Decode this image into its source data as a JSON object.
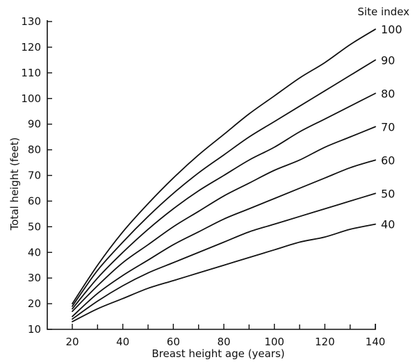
{
  "chart_data": {
    "type": "line",
    "title": "",
    "xlabel": "Breast height age (years)",
    "ylabel": "Total height (feet)",
    "xlim": [
      20,
      140
    ],
    "ylim": [
      10,
      130
    ],
    "x_ticks": [
      20,
      40,
      60,
      80,
      100,
      120,
      140
    ],
    "x_minor_ticks": [
      30,
      50,
      70,
      90,
      110,
      130
    ],
    "y_ticks": [
      10,
      20,
      30,
      40,
      50,
      60,
      70,
      80,
      90,
      100,
      110,
      120,
      130
    ],
    "grid": false,
    "legend_title": "Site index",
    "legend_placement": "right, at curve ends",
    "series": [
      {
        "name": "100",
        "x": [
          20,
          30,
          40,
          50,
          60,
          70,
          80,
          90,
          100,
          110,
          120,
          130,
          140
        ],
        "values": [
          20,
          35,
          48,
          59,
          69,
          78,
          86,
          94,
          101,
          108,
          114,
          121,
          127
        ]
      },
      {
        "name": "90",
        "x": [
          20,
          30,
          40,
          50,
          60,
          70,
          80,
          90,
          100,
          110,
          120,
          130,
          140
        ],
        "values": [
          19,
          33,
          44,
          54,
          63,
          71,
          78,
          85,
          91,
          97,
          103,
          109,
          115
        ]
      },
      {
        "name": "80",
        "x": [
          20,
          30,
          40,
          50,
          60,
          70,
          80,
          90,
          100,
          110,
          120,
          130,
          140
        ],
        "values": [
          18,
          30,
          40,
          49,
          57,
          64,
          70,
          76,
          81,
          87,
          92,
          97,
          102
        ]
      },
      {
        "name": "70",
        "x": [
          20,
          30,
          40,
          50,
          60,
          70,
          80,
          90,
          100,
          110,
          120,
          130,
          140
        ],
        "values": [
          17,
          27,
          36,
          43,
          50,
          56,
          62,
          67,
          72,
          76,
          81,
          85,
          89
        ]
      },
      {
        "name": "60",
        "x": [
          20,
          30,
          40,
          50,
          60,
          70,
          80,
          90,
          100,
          110,
          120,
          130,
          140
        ],
        "values": [
          15,
          24,
          31,
          37,
          43,
          48,
          53,
          57,
          61,
          65,
          69,
          73,
          76
        ]
      },
      {
        "name": "50",
        "x": [
          20,
          30,
          40,
          50,
          60,
          70,
          80,
          90,
          100,
          110,
          120,
          130,
          140
        ],
        "values": [
          14,
          21,
          27,
          32,
          36,
          40,
          44,
          48,
          51,
          54,
          57,
          60,
          63
        ]
      },
      {
        "name": "40",
        "x": [
          20,
          30,
          40,
          50,
          60,
          70,
          80,
          90,
          100,
          110,
          120,
          130,
          140
        ],
        "values": [
          13,
          18,
          22,
          26,
          29,
          32,
          35,
          38,
          41,
          44,
          46,
          49,
          51
        ]
      }
    ]
  }
}
